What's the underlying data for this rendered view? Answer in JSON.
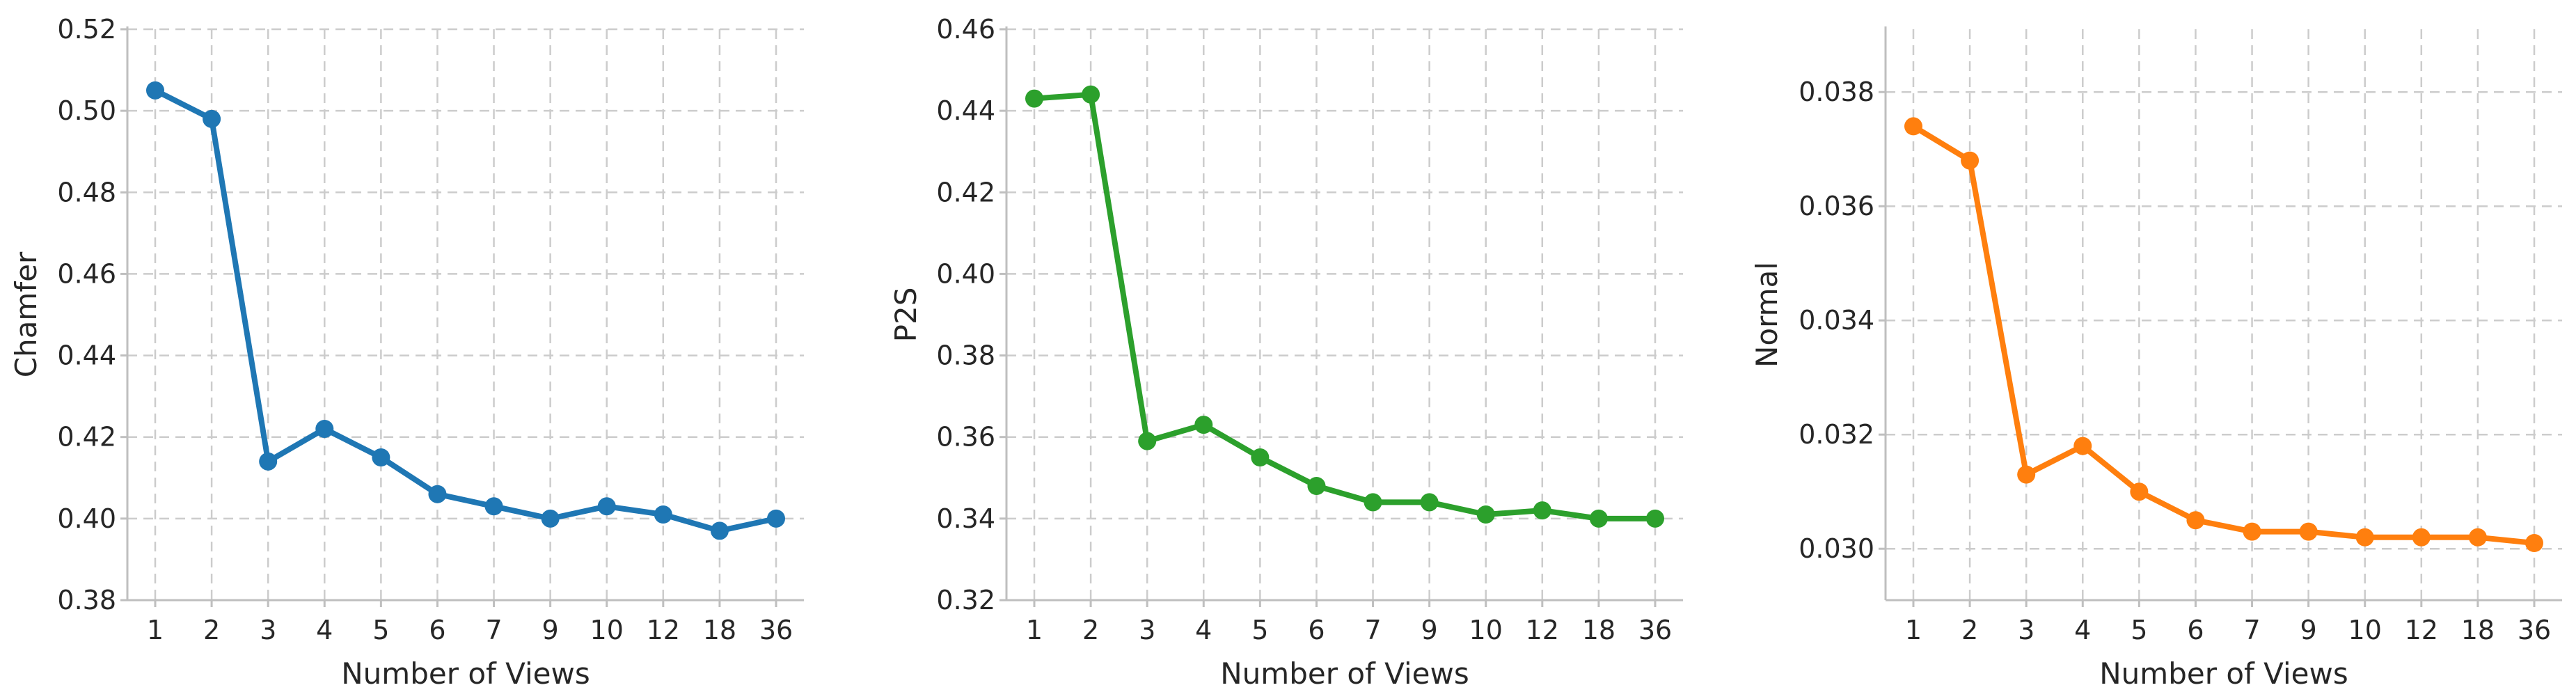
{
  "chart_data": [
    {
      "type": "line",
      "xlabel": "Number of Views",
      "ylabel": "Chamfer",
      "categories": [
        "1",
        "2",
        "3",
        "4",
        "5",
        "6",
        "7",
        "9",
        "10",
        "12",
        "18",
        "36"
      ],
      "values": [
        0.505,
        0.498,
        0.414,
        0.422,
        0.415,
        0.406,
        0.403,
        0.4,
        0.403,
        0.401,
        0.397,
        0.4
      ],
      "ylim": [
        0.38,
        0.52
      ],
      "yticks": [
        "0.38",
        "0.40",
        "0.42",
        "0.44",
        "0.46",
        "0.48",
        "0.50",
        "0.52"
      ],
      "color": "#1f77b4",
      "grid": true
    },
    {
      "type": "line",
      "xlabel": "Number of Views",
      "ylabel": "P2S",
      "categories": [
        "1",
        "2",
        "3",
        "4",
        "5",
        "6",
        "7",
        "9",
        "10",
        "12",
        "18",
        "36"
      ],
      "values": [
        0.443,
        0.444,
        0.359,
        0.363,
        0.355,
        0.348,
        0.344,
        0.344,
        0.341,
        0.342,
        0.34,
        0.34
      ],
      "ylim": [
        0.32,
        0.46
      ],
      "yticks": [
        "0.32",
        "0.34",
        "0.36",
        "0.38",
        "0.40",
        "0.42",
        "0.44",
        "0.46"
      ],
      "color": "#2ca02c",
      "grid": true
    },
    {
      "type": "line",
      "xlabel": "Number of Views",
      "ylabel": "Normal",
      "categories": [
        "1",
        "2",
        "3",
        "4",
        "5",
        "6",
        "7",
        "9",
        "10",
        "12",
        "18",
        "36"
      ],
      "values": [
        0.0374,
        0.0368,
        0.0313,
        0.0318,
        0.031,
        0.0305,
        0.0303,
        0.0303,
        0.0302,
        0.0302,
        0.0302,
        0.0301
      ],
      "ylim": [
        0.0291,
        0.0391
      ],
      "yticks": [
        "0.030",
        "0.032",
        "0.034",
        "0.036",
        "0.038"
      ],
      "color": "#ff7f0e",
      "grid": true
    }
  ]
}
